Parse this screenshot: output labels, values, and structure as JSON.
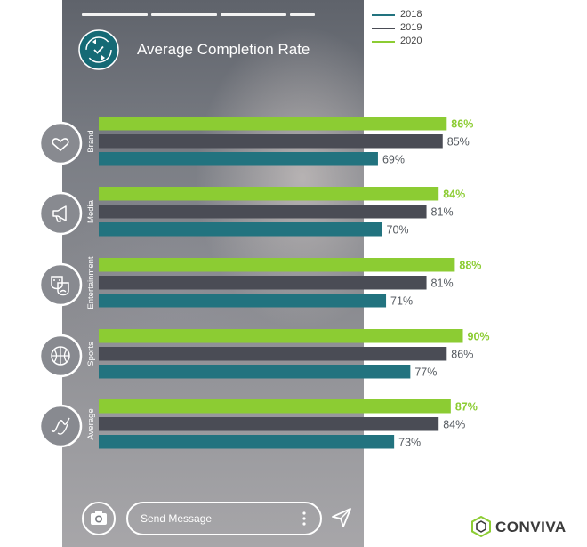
{
  "header": {
    "title": "Average Completion Rate"
  },
  "legend": [
    {
      "label": "2018",
      "color": "#22737f"
    },
    {
      "label": "2019",
      "color": "#4a4c55"
    },
    {
      "label": "2020",
      "color": "#8ccc33"
    }
  ],
  "chart_data": {
    "type": "bar",
    "orientation": "horizontal",
    "title": "Average Completion Rate",
    "unit": "%",
    "categories": [
      "Brand",
      "Media",
      "Entertainment",
      "Sports",
      "Average"
    ],
    "category_icons": [
      "heart-icon",
      "megaphone-icon",
      "theater-masks-icon",
      "basketball-icon",
      "wave-icon"
    ],
    "series": [
      {
        "name": "2020",
        "color": "#8ccc33",
        "values": [
          86,
          84,
          88,
          90,
          87
        ],
        "labels": [
          "86%",
          "84%",
          "88%",
          "90%",
          "87%"
        ]
      },
      {
        "name": "2019",
        "color": "#4a4c55",
        "values": [
          85,
          81,
          81,
          86,
          84
        ],
        "labels": [
          "85%",
          "81%",
          "81%",
          "86%",
          "84%"
        ]
      },
      {
        "name": "2018",
        "color": "#22737f",
        "values": [
          69,
          70,
          71,
          77,
          73
        ],
        "labels": [
          "69%",
          "70%",
          "71%",
          "77%",
          "73%"
        ]
      }
    ],
    "legend_position": "top-right"
  },
  "footer": {
    "message_placeholder": "Send Message"
  },
  "brand": {
    "name": "CONVIVA"
  }
}
